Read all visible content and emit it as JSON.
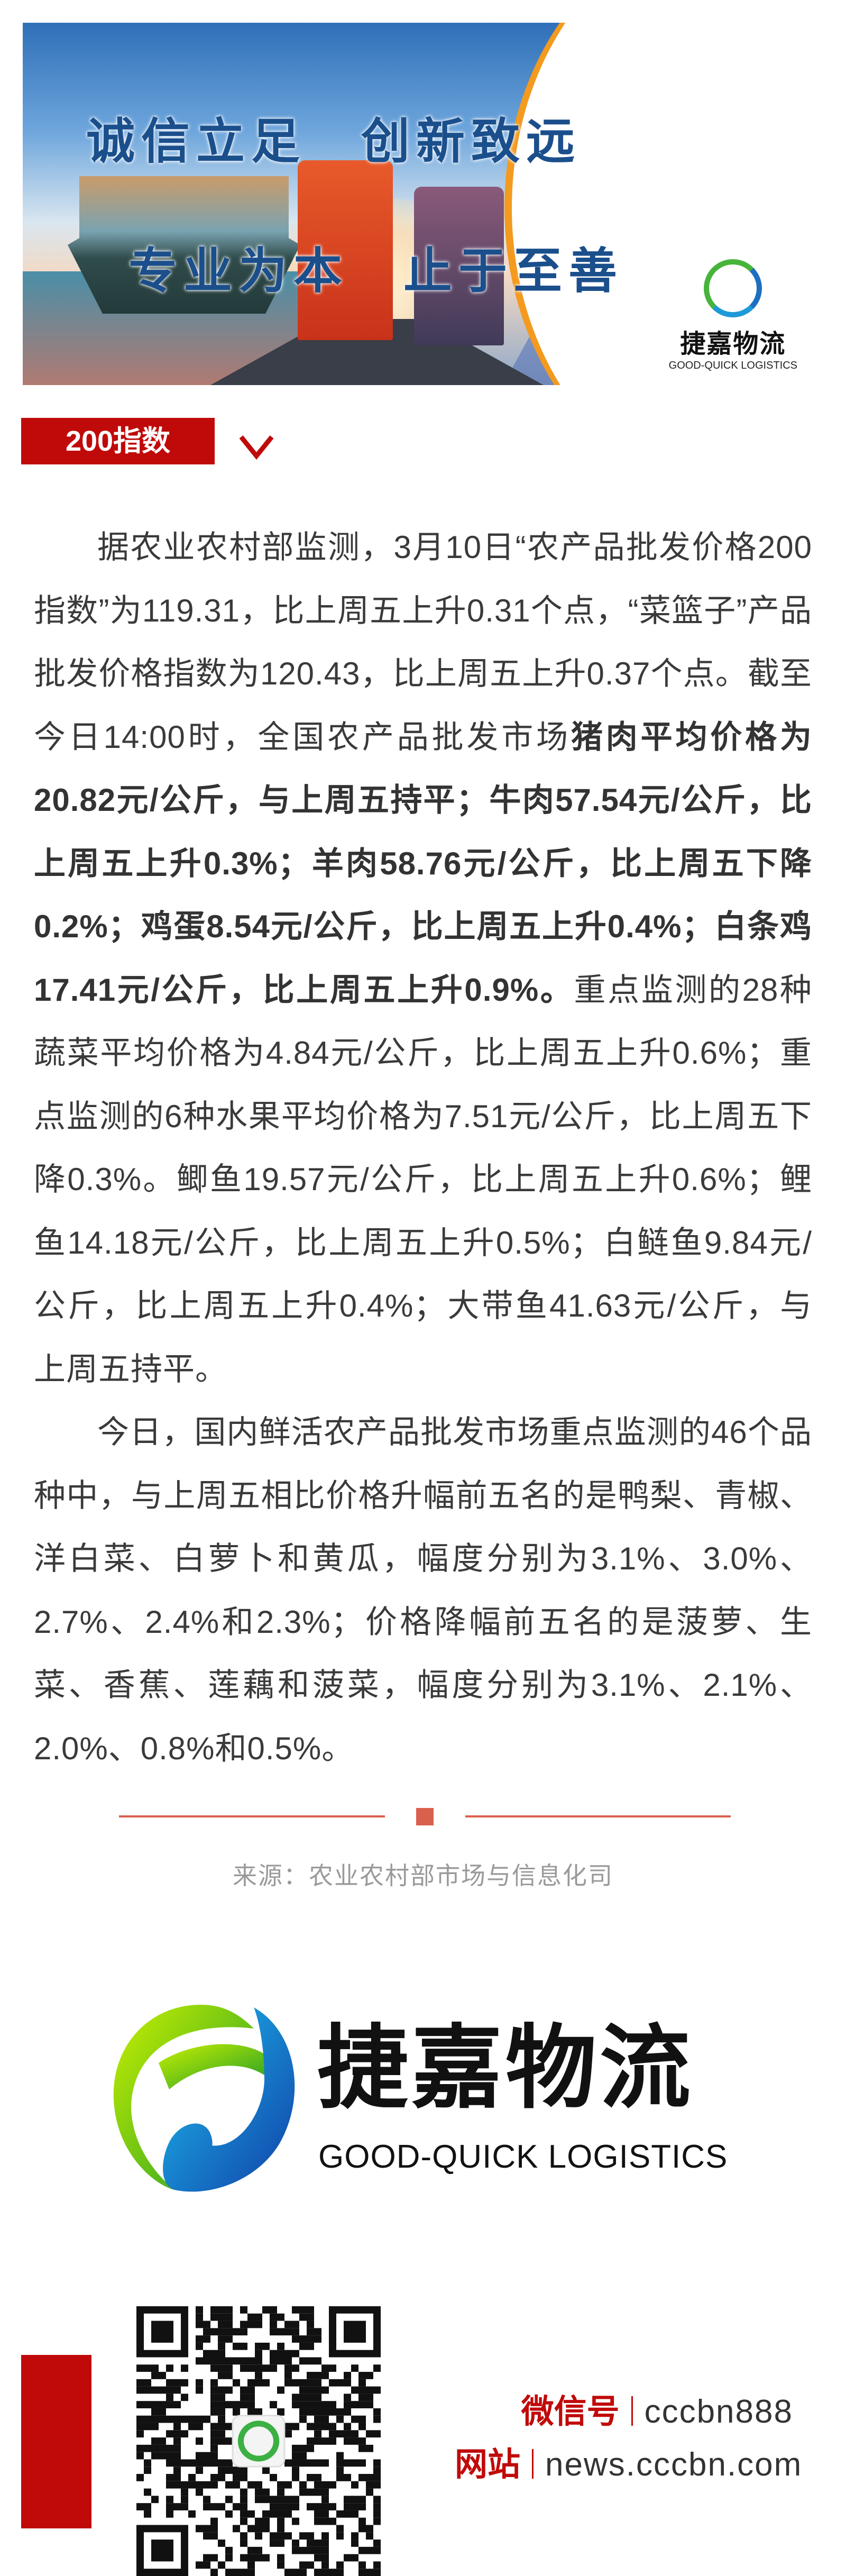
{
  "banner": {
    "tagline_1": "诚信立足　创新致远",
    "tagline_2": "专业为本　止于至善",
    "logo_cn": "捷嘉物流",
    "logo_en": "GOOD-QUICK LOGISTICS"
  },
  "section": {
    "tag_label": "200指数",
    "chevron_icon": "chevron-down-icon"
  },
  "article": {
    "paragraph_1": [
      {
        "text": "据农业农村部监测，3月10日“农产品批发价格200指数”为119.31，比上周五上升0.31个点，“菜篮子”产品批发价格指数为120.43，比上周五上升0.37个点。截至今日14:00时，全国农产品批发市场",
        "bold": false
      },
      {
        "text": "猪肉平均价格为20.82元/公斤，与上周五持平；牛肉57.54元/公斤，比上周五上升0.3%；羊肉58.76元/公斤，比上周五下降0.2%；鸡蛋8.54元/公斤，比上周五上升0.4%；白条鸡17.41元/公斤，比上周五上升0.9%。",
        "bold": true
      },
      {
        "text": "重点监测的28种蔬菜平均价格为4.84元/公斤，比上周五上升0.6%；重点监测的6种水果平均价格为7.51元/公斤，比上周五下降0.3%。鲫鱼19.57元/公斤，比上周五上升0.6%；鲤鱼14.18元/公斤，比上周五上升0.5%；白鲢鱼9.84元/公斤，比上周五上升0.4%；大带鱼41.63元/公斤，与上周五持平。",
        "bold": false
      }
    ],
    "paragraph_2": "今日，国内鲜活农产品批发市场重点监测的46个品种中，与上周五相比价格升幅前五名的是鸭梨、青椒、洋白菜、白萝卜和黄瓜，幅度分别为3.1%、3.0%、2.7%、2.4%和2.3%；价格降幅前五名的是菠萝、生菜、香蕉、莲藕和菠菜，幅度分别为3.1%、2.1%、2.0%、0.8%和0.5%。"
  },
  "footer": {
    "source": "来源：农业农村部市场与信息化司",
    "logo_cn": "捷嘉物流",
    "logo_en": "GOOD-QUICK LOGISTICS",
    "wechat_label": "微信号",
    "wechat_value": "cccbn888",
    "site_label": "网站",
    "site_value": "news.cccbn.com"
  },
  "colors": {
    "accent_red": "#c00a0a",
    "divider": "#d9604d",
    "text": "#3a3a3a",
    "muted": "#9a9a9a",
    "banner_orange": "#f39a1f"
  }
}
